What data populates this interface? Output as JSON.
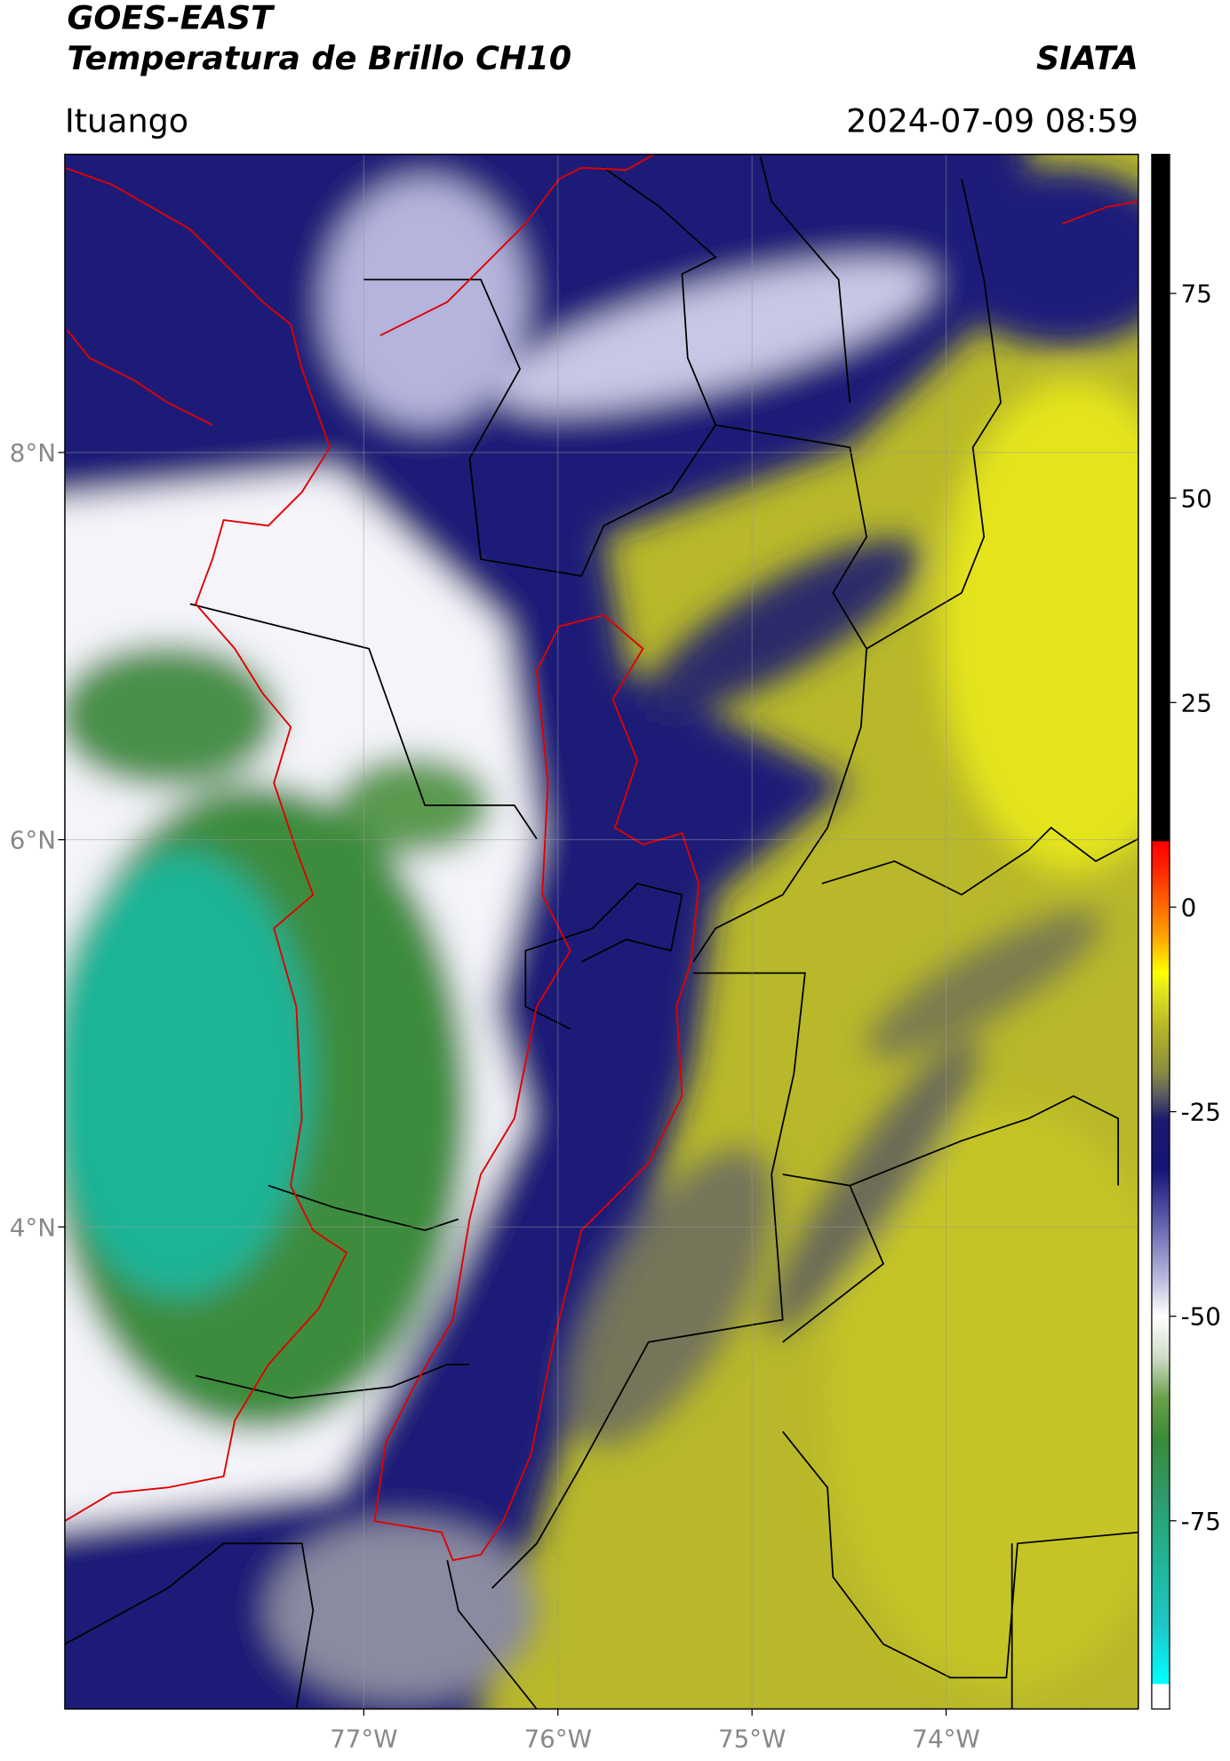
{
  "header": {
    "title": "GOES-EAST",
    "subtitle": "Temperatura de Brillo CH10",
    "brand": "SIATA",
    "location": "Ituango",
    "timestamp": "2024-07-09 08:59"
  },
  "map": {
    "xlim": [
      -78.54,
      -73.01
    ],
    "ylim": [
      1.51,
      9.54
    ],
    "xticks": [
      {
        "value": -77,
        "label": "77°W"
      },
      {
        "value": -76,
        "label": "76°W"
      },
      {
        "value": -75,
        "label": "75°W"
      },
      {
        "value": -74,
        "label": "74°W"
      }
    ],
    "yticks": [
      {
        "value": 8,
        "label": "8°N"
      },
      {
        "value": 6,
        "label": "6°N"
      },
      {
        "value": 4,
        "label": "4°N"
      }
    ],
    "grid": true
  },
  "colorbar": {
    "clim": [
      -98,
      92
    ],
    "ticks": [
      75,
      50,
      25,
      0,
      -25,
      -50,
      -75
    ],
    "colormap": [
      {
        "value": -98,
        "color": "#ffffff"
      },
      {
        "value": -95,
        "color": "#ffffff"
      },
      {
        "value": -94.9,
        "color": "#00ffff"
      },
      {
        "value": -88,
        "color": "#1ec8c8"
      },
      {
        "value": -80,
        "color": "#20b496"
      },
      {
        "value": -72,
        "color": "#2e9a6a"
      },
      {
        "value": -65,
        "color": "#3a8a38"
      },
      {
        "value": -60,
        "color": "#6aa04a"
      },
      {
        "value": -55,
        "color": "#cfdcc8"
      },
      {
        "value": -50,
        "color": "#ffffff"
      },
      {
        "value": -45,
        "color": "#b4b4dc"
      },
      {
        "value": -38,
        "color": "#5a5aa8"
      },
      {
        "value": -32,
        "color": "#141478"
      },
      {
        "value": -26,
        "color": "#1a1a6e"
      },
      {
        "value": -23,
        "color": "#5a5a60"
      },
      {
        "value": -20,
        "color": "#8c8c40"
      },
      {
        "value": -15,
        "color": "#b4b428"
      },
      {
        "value": -10,
        "color": "#e6e61e"
      },
      {
        "value": -8,
        "color": "#ffff00"
      },
      {
        "value": -3,
        "color": "#ff9900"
      },
      {
        "value": 5,
        "color": "#ff2000"
      },
      {
        "value": 8,
        "color": "#ff0000"
      },
      {
        "value": 8.1,
        "color": "#000000"
      },
      {
        "value": 92,
        "color": "#000000"
      }
    ]
  }
}
